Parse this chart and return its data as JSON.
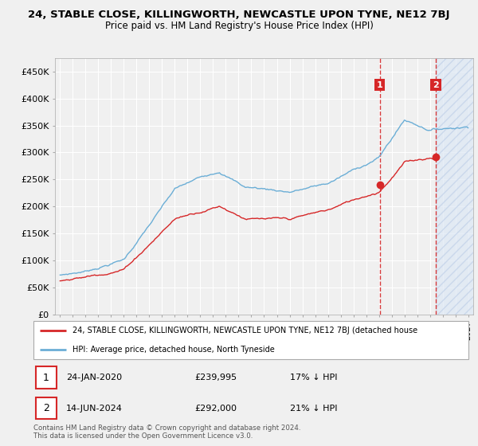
{
  "title": "24, STABLE CLOSE, KILLINGWORTH, NEWCASTLE UPON TYNE, NE12 7BJ",
  "subtitle": "Price paid vs. HM Land Registry's House Price Index (HPI)",
  "ylim": [
    0,
    475000
  ],
  "xlim_start": 1994.6,
  "xlim_end": 2027.4,
  "hpi_color": "#6baed6",
  "price_color": "#d62728",
  "dashed_line_color": "#d62728",
  "background_plot": "#f0f0f0",
  "fig_background": "#f0f0f0",
  "grid_color": "#ffffff",
  "sale1_date": 2020.07,
  "sale1_price": 239995,
  "sale2_date": 2024.46,
  "sale2_price": 292000,
  "hatch_start": 2024.46,
  "legend_line1": "24, STABLE CLOSE, KILLINGWORTH, NEWCASTLE UPON TYNE, NE12 7BJ (detached house",
  "legend_line2": "HPI: Average price, detached house, North Tyneside",
  "annotation1_date": "24-JAN-2020",
  "annotation1_price": "£239,995",
  "annotation1_pct": "17% ↓ HPI",
  "annotation2_date": "14-JUN-2024",
  "annotation2_price": "£292,000",
  "annotation2_pct": "21% ↓ HPI",
  "footer1": "Contains HM Land Registry data © Crown copyright and database right 2024.",
  "footer2": "This data is licensed under the Open Government Licence v3.0."
}
